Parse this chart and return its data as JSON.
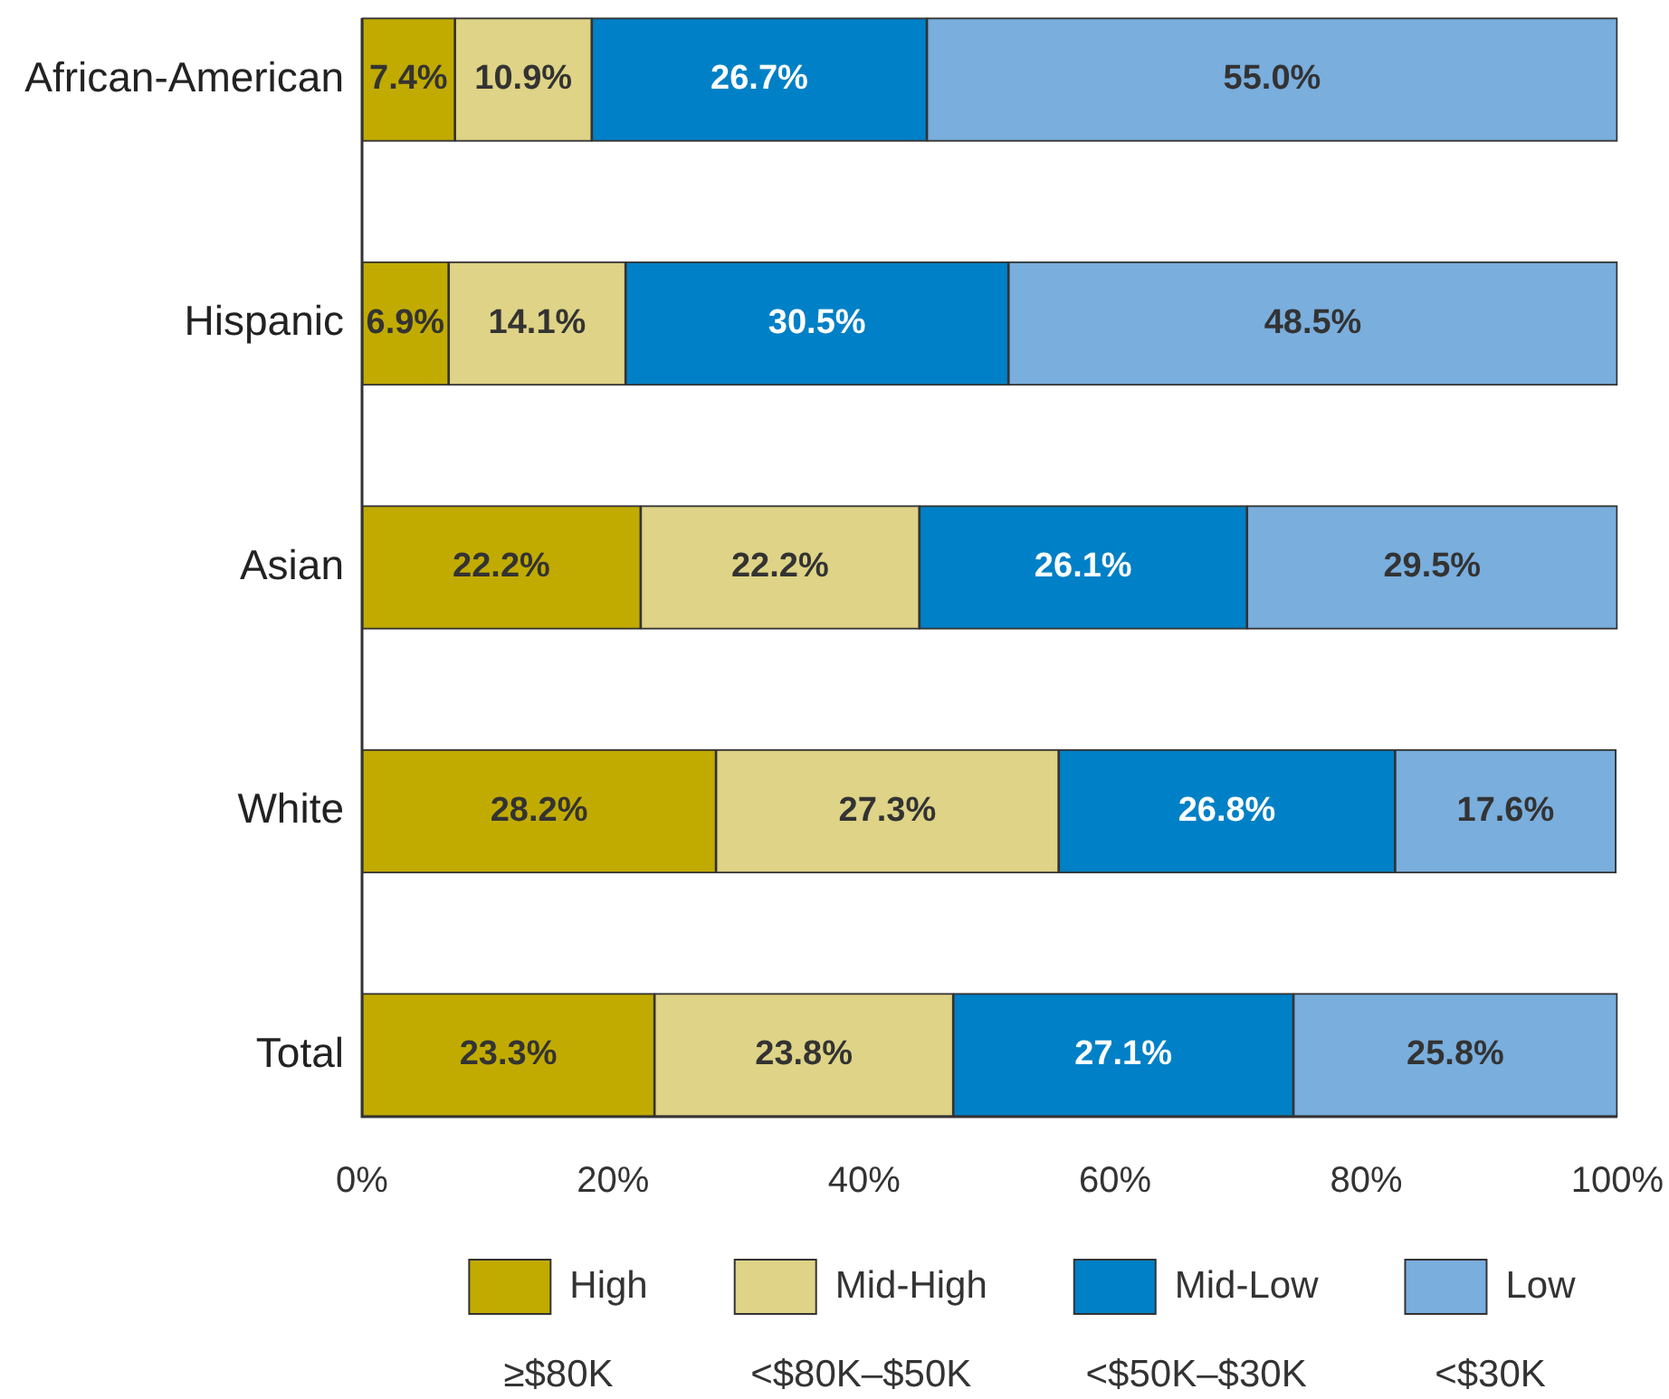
{
  "chart_data": {
    "type": "bar",
    "orientation": "horizontal",
    "stacked": true,
    "categories": [
      "African-American",
      "Hispanic",
      "Asian",
      "White",
      "Total"
    ],
    "series": [
      {
        "name": "High",
        "color": "#c2ab00",
        "values": [
          7.4,
          6.9,
          22.2,
          28.2,
          23.3
        ],
        "value_labels": [
          "7.4%",
          "6.9%",
          "22.2%",
          "28.2%",
          "23.3%"
        ]
      },
      {
        "name": "Mid-High",
        "color": "#ded386",
        "values": [
          10.9,
          14.1,
          22.2,
          27.3,
          23.8
        ],
        "value_labels": [
          "10.9%",
          "14.1%",
          "22.2%",
          "27.3%",
          "23.8%"
        ]
      },
      {
        "name": "Mid-Low",
        "color": "#0080c6",
        "values": [
          26.7,
          30.5,
          26.1,
          26.8,
          27.1
        ],
        "value_labels": [
          "26.7%",
          "30.5%",
          "26.1%",
          "26.8%",
          "27.1%"
        ]
      },
      {
        "name": "Low",
        "color": "#79aedd",
        "values": [
          55.0,
          48.5,
          29.5,
          17.6,
          25.8
        ],
        "value_labels": [
          "55.0%",
          "48.5%",
          "29.5%",
          "17.6%",
          "25.8%"
        ]
      }
    ],
    "xlim": [
      0,
      100
    ],
    "xticks": [
      {
        "value": 0,
        "label": "0%"
      },
      {
        "value": 20,
        "label": "20%"
      },
      {
        "value": 40,
        "label": "40%"
      },
      {
        "value": 60,
        "label": "60%"
      },
      {
        "value": 80,
        "label": "80%"
      },
      {
        "value": 100,
        "label": "100%"
      }
    ],
    "legend": "bottom",
    "annotations": [
      "≥$80K",
      "<$80K–$50K",
      "<$50K–$30K",
      "<$30K"
    ]
  }
}
